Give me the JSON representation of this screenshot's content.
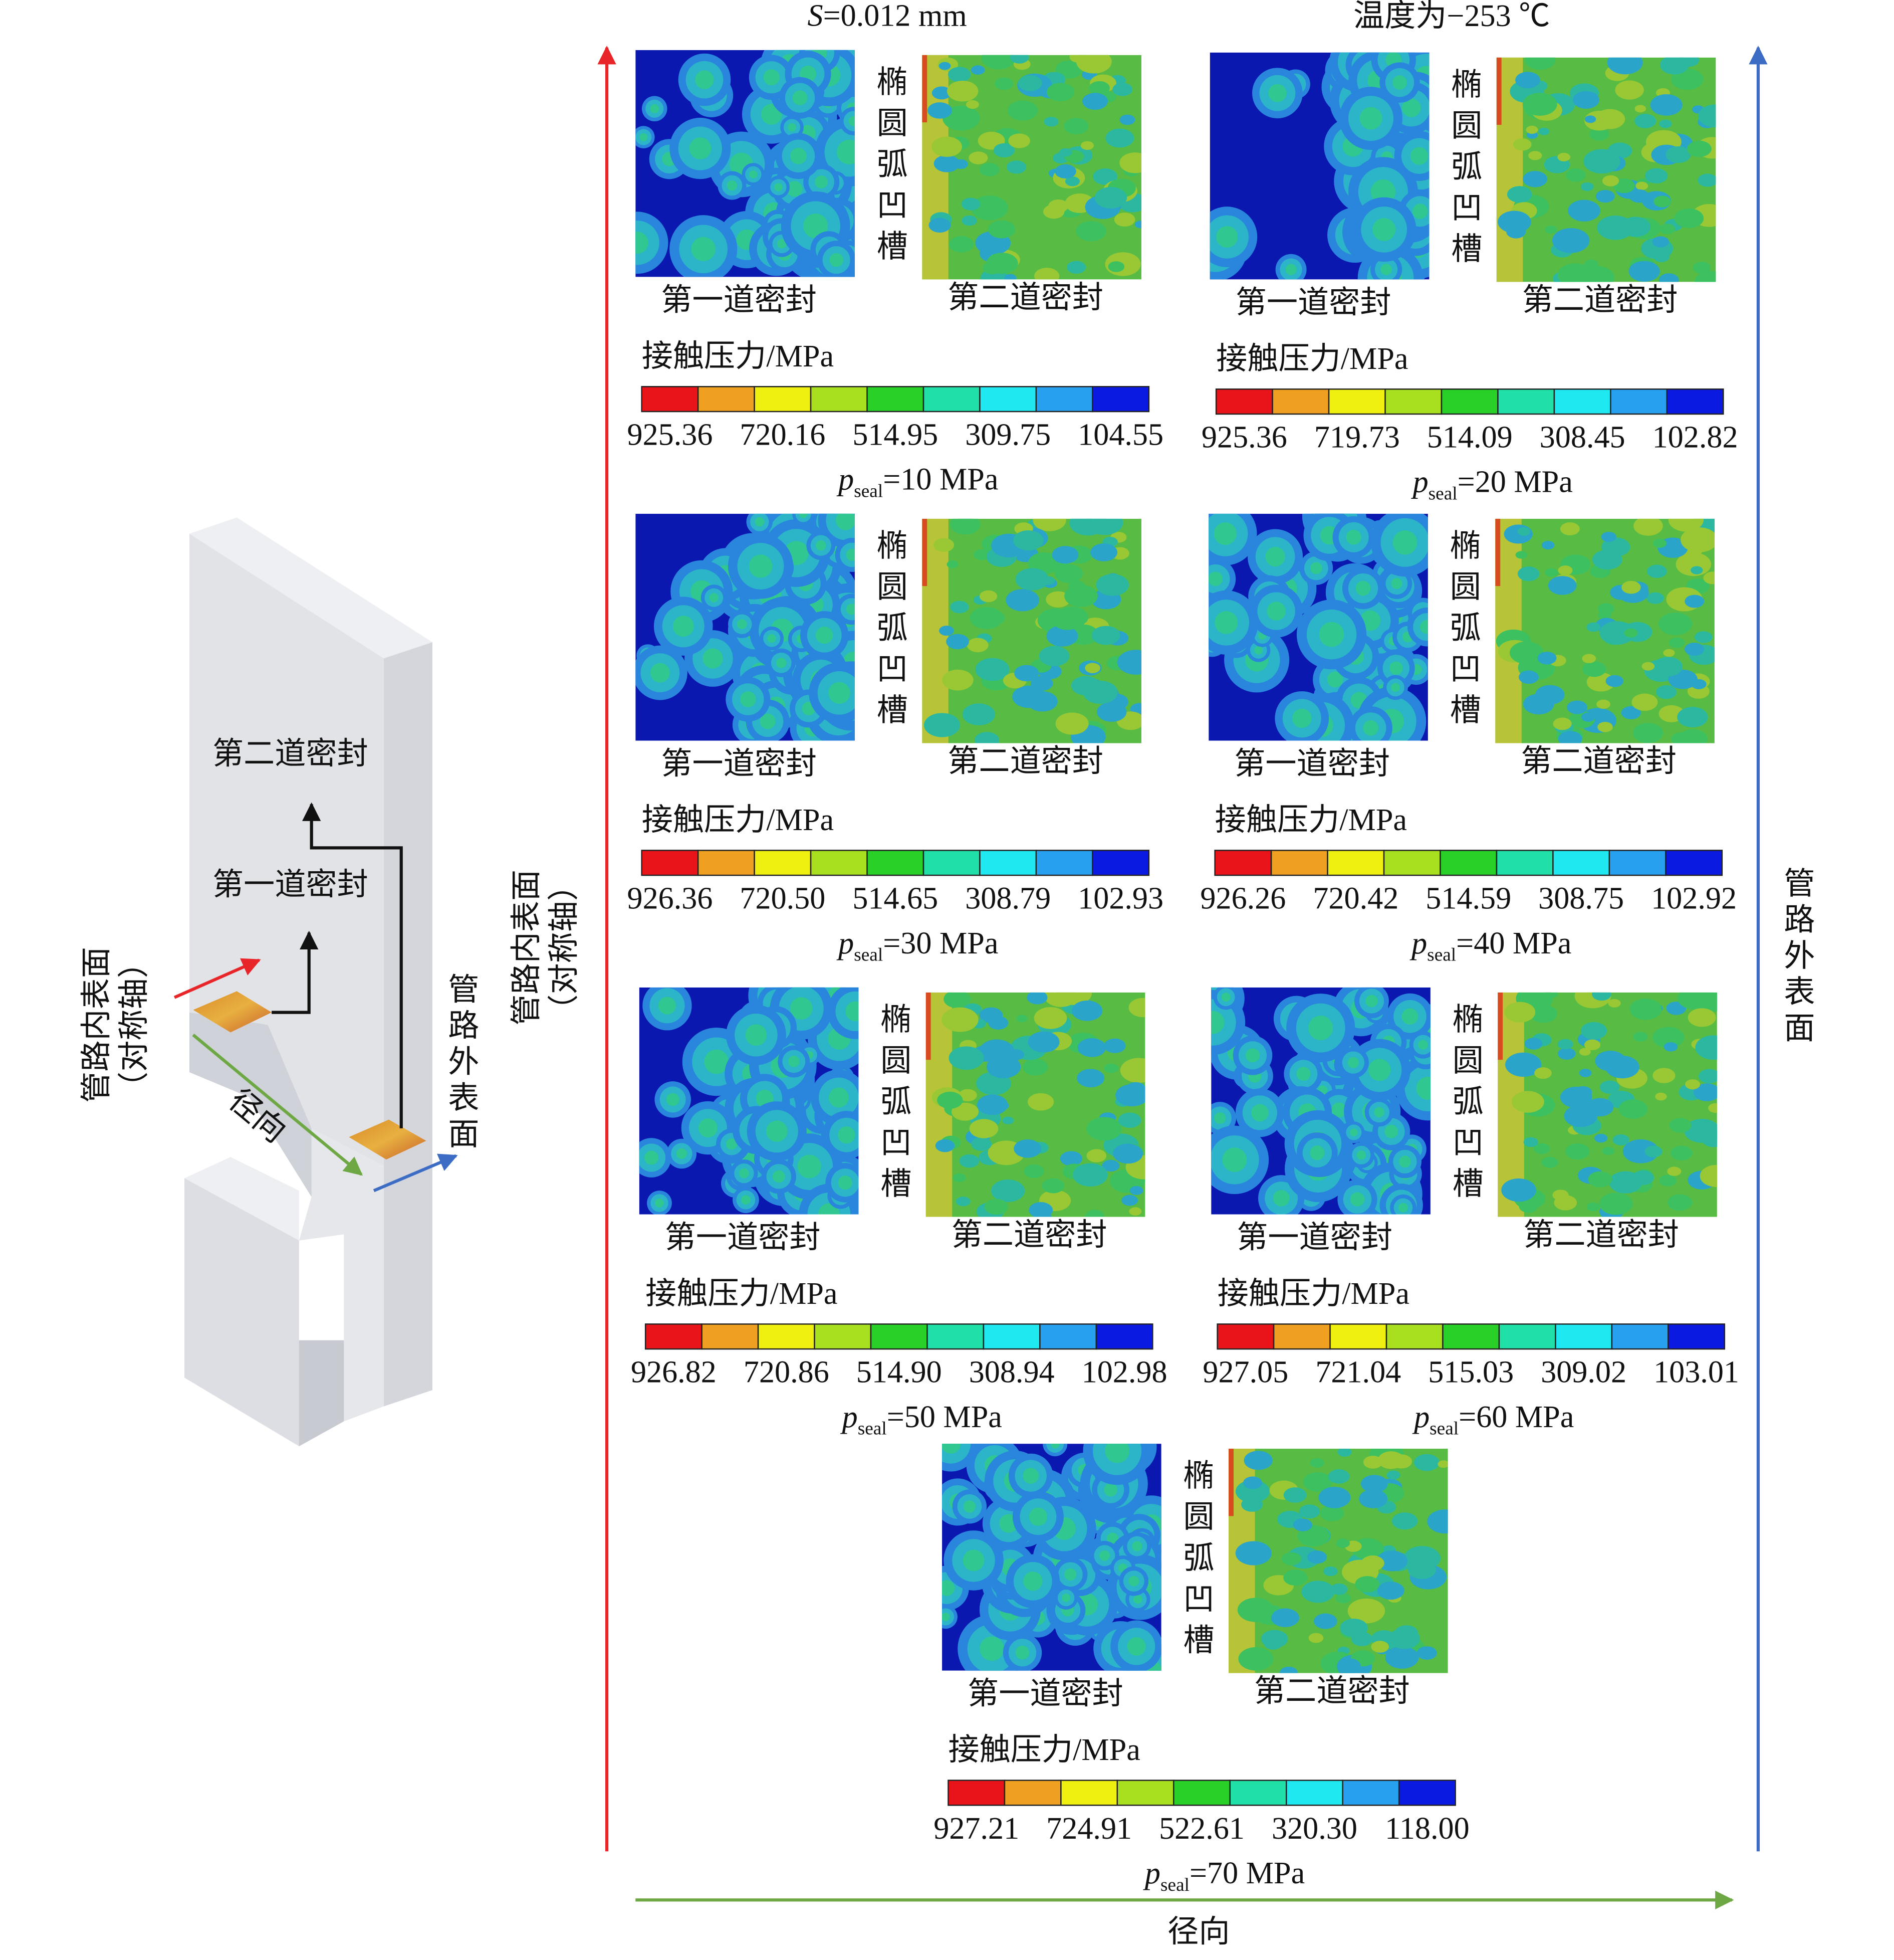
{
  "header": {
    "left": {
      "symbol": "S",
      "text": "=0.012 mm"
    },
    "right": "温度为−253 ℃"
  },
  "schematic": {
    "second_seal": "第二道密封",
    "first_seal": "第一道密封",
    "inner_surface": "管路内表面",
    "axis_note": "（对称轴）",
    "radial": "径向",
    "outer_surface": "管路外表面"
  },
  "axes": {
    "inner_surface": "管路内表面",
    "axis_note": "（对称轴）",
    "outer_surface": "管路外表面",
    "radial": "径向"
  },
  "panels": [
    {
      "groove": "椭圆弧凹槽",
      "first_seal": "第一道密封",
      "second_seal": "第二道密封",
      "colorbar_title": "接触压力/MPa",
      "colorbar_labels": [
        "925.36",
        "720.16",
        "514.95",
        "309.75",
        "104.55"
      ],
      "pressure": {
        "symbol": "p",
        "subscript": "seal",
        "text": "=10 MPa"
      }
    },
    {
      "groove": "椭圆弧凹槽",
      "first_seal": "第一道密封",
      "second_seal": "第二道密封",
      "colorbar_title": "接触压力/MPa",
      "colorbar_labels": [
        "925.36",
        "719.73",
        "514.09",
        "308.45",
        "102.82"
      ],
      "pressure": {
        "symbol": "p",
        "subscript": "seal",
        "text": "=20 MPa"
      }
    },
    {
      "groove": "椭圆弧凹槽",
      "first_seal": "第一道密封",
      "second_seal": "第二道密封",
      "colorbar_title": "接触压力/MPa",
      "colorbar_labels": [
        "926.36",
        "720.50",
        "514.65",
        "308.79",
        "102.93"
      ],
      "pressure": {
        "symbol": "p",
        "subscript": "seal",
        "text": "=30 MPa"
      }
    },
    {
      "groove": "椭圆弧凹槽",
      "first_seal": "第一道密封",
      "second_seal": "第二道密封",
      "colorbar_title": "接触压力/MPa",
      "colorbar_labels": [
        "926.26",
        "720.42",
        "514.59",
        "308.75",
        "102.92"
      ],
      "pressure": {
        "symbol": "p",
        "subscript": "seal",
        "text": "=40 MPa"
      }
    },
    {
      "groove": "椭圆弧凹槽",
      "first_seal": "第一道密封",
      "second_seal": "第二道密封",
      "colorbar_title": "接触压力/MPa",
      "colorbar_labels": [
        "926.82",
        "720.86",
        "514.90",
        "308.94",
        "102.98"
      ],
      "pressure": {
        "symbol": "p",
        "subscript": "seal",
        "text": "=50 MPa"
      }
    },
    {
      "groove": "椭圆弧凹槽",
      "first_seal": "第一道密封",
      "second_seal": "第二道密封",
      "colorbar_title": "接触压力/MPa",
      "colorbar_labels": [
        "927.05",
        "721.04",
        "515.03",
        "309.02",
        "103.01"
      ],
      "pressure": {
        "symbol": "p",
        "subscript": "seal",
        "text": "=60 MPa"
      }
    },
    {
      "groove": "椭圆弧凹槽",
      "first_seal": "第一道密封",
      "second_seal": "第二道密封",
      "colorbar_title": "接触压力/MPa",
      "colorbar_labels": [
        "927.21",
        "724.91",
        "522.61",
        "320.30",
        "118.00"
      ],
      "pressure": {
        "symbol": "p",
        "subscript": "seal",
        "text": "=70 MPa"
      }
    }
  ]
}
